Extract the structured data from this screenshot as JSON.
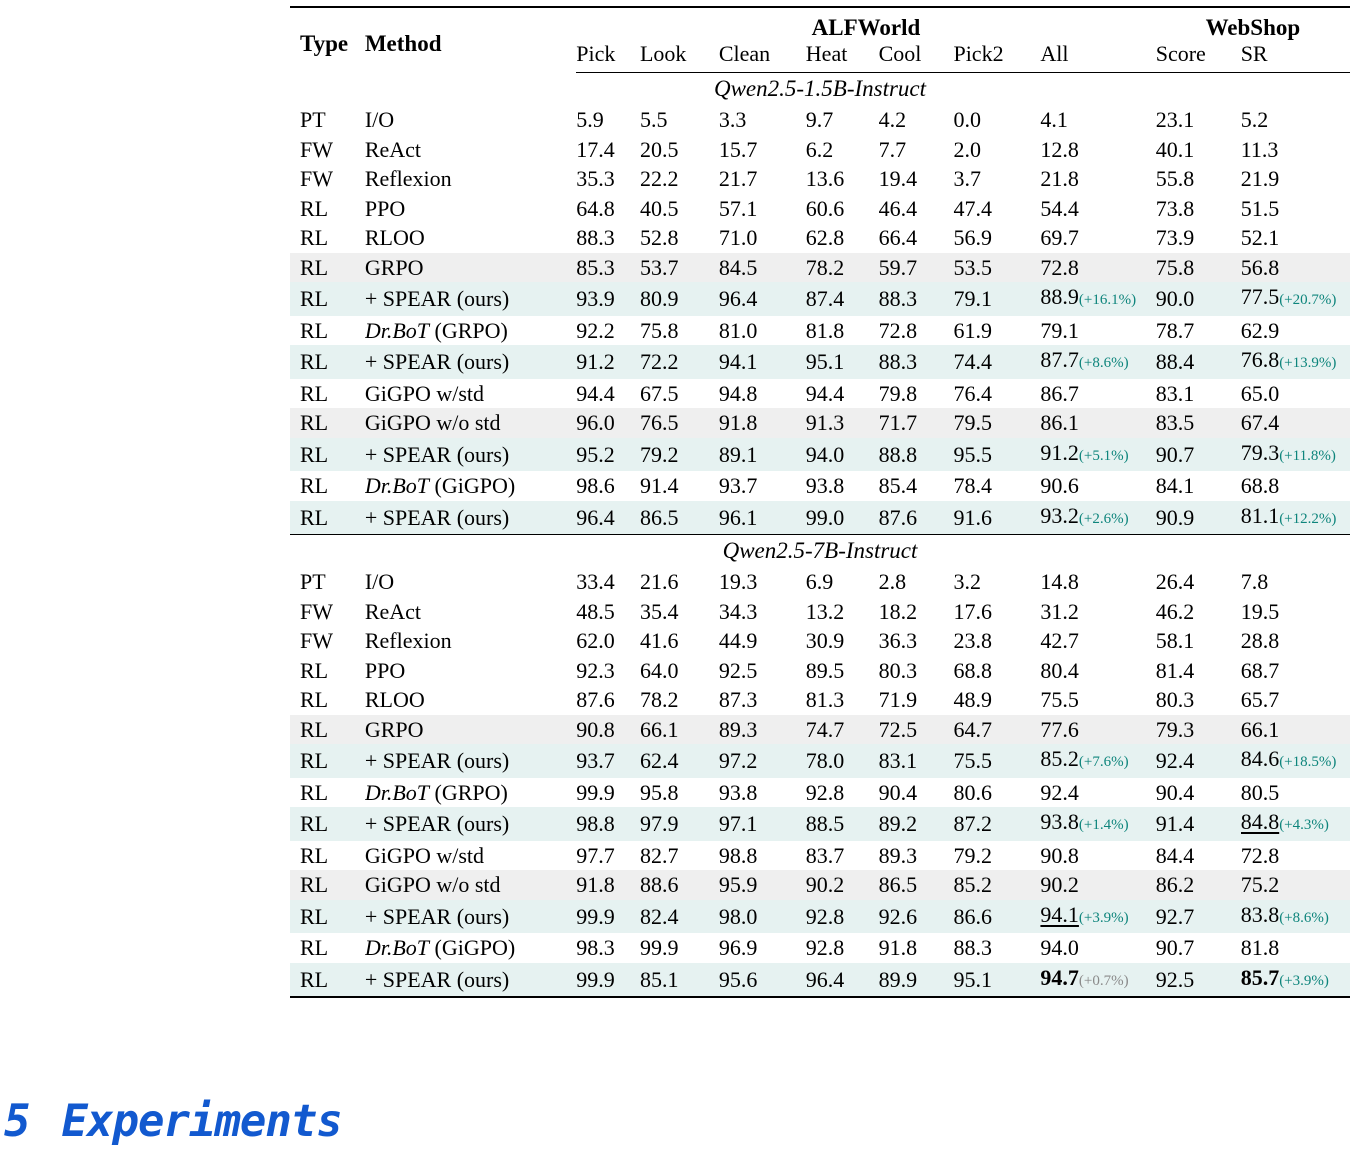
{
  "page": {
    "heading": {
      "number": "5",
      "title": "Experiments",
      "color": "#1259cf"
    }
  },
  "table": {
    "header": {
      "type": "Type",
      "method": "Method",
      "alfworld": "ALFWorld",
      "webshop": "WebShop",
      "columns": [
        "Pick",
        "Look",
        "Clean",
        "Heat",
        "Cool",
        "Pick2",
        "All",
        "Score",
        "SR"
      ]
    },
    "colors": {
      "row_teal": "#e6f2f1",
      "row_gray": "#efefef",
      "note_teal": "#0e857c",
      "note_muted": "#8a8a8a"
    },
    "sections": [
      {
        "title": "Qwen2.5-1.5B-Instruct",
        "rows": [
          {
            "type": "PT",
            "method": "I/O",
            "cells": [
              "5.9",
              "5.5",
              "3.3",
              "9.7",
              "4.2",
              "0.0"
            ],
            "all": {
              "v": "4.1"
            },
            "score": "23.1",
            "sr": {
              "v": "5.2"
            },
            "bg": null
          },
          {
            "type": "FW",
            "method": "ReAct",
            "cells": [
              "17.4",
              "20.5",
              "15.7",
              "6.2",
              "7.7",
              "2.0"
            ],
            "all": {
              "v": "12.8"
            },
            "score": "40.1",
            "sr": {
              "v": "11.3"
            },
            "bg": null
          },
          {
            "type": "FW",
            "method": "Reflexion",
            "cells": [
              "35.3",
              "22.2",
              "21.7",
              "13.6",
              "19.4",
              "3.7"
            ],
            "all": {
              "v": "21.8"
            },
            "score": "55.8",
            "sr": {
              "v": "21.9"
            },
            "bg": null
          },
          {
            "type": "RL",
            "method": "PPO",
            "cells": [
              "64.8",
              "40.5",
              "57.1",
              "60.6",
              "46.4",
              "47.4"
            ],
            "all": {
              "v": "54.4"
            },
            "score": "73.8",
            "sr": {
              "v": "51.5"
            },
            "bg": null
          },
          {
            "type": "RL",
            "method": "RLOO",
            "cells": [
              "88.3",
              "52.8",
              "71.0",
              "62.8",
              "66.4",
              "56.9"
            ],
            "all": {
              "v": "69.7"
            },
            "score": "73.9",
            "sr": {
              "v": "52.1"
            },
            "bg": null
          },
          {
            "type": "RL",
            "method": "GRPO",
            "cells": [
              "85.3",
              "53.7",
              "84.5",
              "78.2",
              "59.7",
              "53.5"
            ],
            "all": {
              "v": "72.8"
            },
            "score": "75.8",
            "sr": {
              "v": "56.8"
            },
            "bg": "gray"
          },
          {
            "type": "RL",
            "method": "+ SPEAR (ours)",
            "cells": [
              "93.9",
              "80.9",
              "96.4",
              "87.4",
              "88.3",
              "79.1"
            ],
            "all": {
              "v": "88.9",
              "note": "(+16.1%)"
            },
            "score": "90.0",
            "sr": {
              "v": "77.5",
              "note": "(+20.7%)"
            },
            "bg": "teal"
          },
          {
            "type": "RL",
            "method_em": "Dr.BoT",
            "method": " (GRPO)",
            "cells": [
              "92.2",
              "75.8",
              "81.0",
              "81.8",
              "72.8",
              "61.9"
            ],
            "all": {
              "v": "79.1"
            },
            "score": "78.7",
            "sr": {
              "v": "62.9"
            },
            "bg": null
          },
          {
            "type": "RL",
            "method": "+ SPEAR (ours)",
            "cells": [
              "91.2",
              "72.2",
              "94.1",
              "95.1",
              "88.3",
              "74.4"
            ],
            "all": {
              "v": "87.7",
              "note": "(+8.6%)"
            },
            "score": "88.4",
            "sr": {
              "v": "76.8",
              "note": "(+13.9%)"
            },
            "bg": "teal"
          },
          {
            "type": "RL",
            "method": "GiGPO w/std",
            "cells": [
              "94.4",
              "67.5",
              "94.8",
              "94.4",
              "79.8",
              "76.4"
            ],
            "all": {
              "v": "86.7"
            },
            "score": "83.1",
            "sr": {
              "v": "65.0"
            },
            "bg": null
          },
          {
            "type": "RL",
            "method": "GiGPO w/o std",
            "cells": [
              "96.0",
              "76.5",
              "91.8",
              "91.3",
              "71.7",
              "79.5"
            ],
            "all": {
              "v": "86.1"
            },
            "score": "83.5",
            "sr": {
              "v": "67.4"
            },
            "bg": "gray"
          },
          {
            "type": "RL",
            "method": "+ SPEAR (ours)",
            "cells": [
              "95.2",
              "79.2",
              "89.1",
              "94.0",
              "88.8",
              "95.5"
            ],
            "all": {
              "v": "91.2",
              "note": "(+5.1%)"
            },
            "score": "90.7",
            "sr": {
              "v": "79.3",
              "note": "(+11.8%)"
            },
            "bg": "teal"
          },
          {
            "type": "RL",
            "method_em": "Dr.BoT",
            "method": " (GiGPO)",
            "cells": [
              "98.6",
              "91.4",
              "93.7",
              "93.8",
              "85.4",
              "78.4"
            ],
            "all": {
              "v": "90.6"
            },
            "score": "84.1",
            "sr": {
              "v": "68.8"
            },
            "bg": null
          },
          {
            "type": "RL",
            "method": "+ SPEAR (ours)",
            "cells": [
              "96.4",
              "86.5",
              "96.1",
              "99.0",
              "87.6",
              "91.6"
            ],
            "all": {
              "v": "93.2",
              "note": "(+2.6%)"
            },
            "score": "90.9",
            "sr": {
              "v": "81.1",
              "note": "(+12.2%)"
            },
            "bg": "teal"
          }
        ]
      },
      {
        "title": "Qwen2.5-7B-Instruct",
        "rows": [
          {
            "type": "PT",
            "method": "I/O",
            "cells": [
              "33.4",
              "21.6",
              "19.3",
              "6.9",
              "2.8",
              "3.2"
            ],
            "all": {
              "v": "14.8"
            },
            "score": "26.4",
            "sr": {
              "v": "7.8"
            },
            "bg": null
          },
          {
            "type": "FW",
            "method": "ReAct",
            "cells": [
              "48.5",
              "35.4",
              "34.3",
              "13.2",
              "18.2",
              "17.6"
            ],
            "all": {
              "v": "31.2"
            },
            "score": "46.2",
            "sr": {
              "v": "19.5"
            },
            "bg": null
          },
          {
            "type": "FW",
            "method": "Reflexion",
            "cells": [
              "62.0",
              "41.6",
              "44.9",
              "30.9",
              "36.3",
              "23.8"
            ],
            "all": {
              "v": "42.7"
            },
            "score": "58.1",
            "sr": {
              "v": "28.8"
            },
            "bg": null
          },
          {
            "type": "RL",
            "method": "PPO",
            "cells": [
              "92.3",
              "64.0",
              "92.5",
              "89.5",
              "80.3",
              "68.8"
            ],
            "all": {
              "v": "80.4"
            },
            "score": "81.4",
            "sr": {
              "v": "68.7"
            },
            "bg": null
          },
          {
            "type": "RL",
            "method": "RLOO",
            "cells": [
              "87.6",
              "78.2",
              "87.3",
              "81.3",
              "71.9",
              "48.9"
            ],
            "all": {
              "v": "75.5"
            },
            "score": "80.3",
            "sr": {
              "v": "65.7"
            },
            "bg": null
          },
          {
            "type": "RL",
            "method": "GRPO",
            "cells": [
              "90.8",
              "66.1",
              "89.3",
              "74.7",
              "72.5",
              "64.7"
            ],
            "all": {
              "v": "77.6"
            },
            "score": "79.3",
            "sr": {
              "v": "66.1"
            },
            "bg": "gray"
          },
          {
            "type": "RL",
            "method": "+ SPEAR (ours)",
            "cells": [
              "93.7",
              "62.4",
              "97.2",
              "78.0",
              "83.1",
              "75.5"
            ],
            "all": {
              "v": "85.2",
              "note": "(+7.6%)"
            },
            "score": "92.4",
            "sr": {
              "v": "84.6",
              "note": "(+18.5%)"
            },
            "bg": "teal"
          },
          {
            "type": "RL",
            "method_em": "Dr.BoT",
            "method": " (GRPO)",
            "cells": [
              "99.9",
              "95.8",
              "93.8",
              "92.8",
              "90.4",
              "80.6"
            ],
            "all": {
              "v": "92.4"
            },
            "score": "90.4",
            "sr": {
              "v": "80.5"
            },
            "bg": null
          },
          {
            "type": "RL",
            "method": "+ SPEAR (ours)",
            "cells": [
              "98.8",
              "97.9",
              "97.1",
              "88.5",
              "89.2",
              "87.2"
            ],
            "all": {
              "v": "93.8",
              "note": "(+1.4%)"
            },
            "score": "91.4",
            "sr": {
              "v": "84.8",
              "note": "(+4.3%)",
              "style": "underline"
            },
            "bg": "teal"
          },
          {
            "type": "RL",
            "method": "GiGPO w/std",
            "cells": [
              "97.7",
              "82.7",
              "98.8",
              "83.7",
              "89.3",
              "79.2"
            ],
            "all": {
              "v": "90.8"
            },
            "score": "84.4",
            "sr": {
              "v": "72.8"
            },
            "bg": null
          },
          {
            "type": "RL",
            "method": "GiGPO w/o std",
            "cells": [
              "91.8",
              "88.6",
              "95.9",
              "90.2",
              "86.5",
              "85.2"
            ],
            "all": {
              "v": "90.2"
            },
            "score": "86.2",
            "sr": {
              "v": "75.2"
            },
            "bg": "gray"
          },
          {
            "type": "RL",
            "method": "+ SPEAR (ours)",
            "cells": [
              "99.9",
              "82.4",
              "98.0",
              "92.8",
              "92.6",
              "86.6"
            ],
            "all": {
              "v": "94.1",
              "note": "(+3.9%)",
              "style": "underline"
            },
            "score": "92.7",
            "sr": {
              "v": "83.8",
              "note": "(+8.6%)"
            },
            "bg": "teal"
          },
          {
            "type": "RL",
            "method_em": "Dr.BoT",
            "method": " (GiGPO)",
            "cells": [
              "98.3",
              "99.9",
              "96.9",
              "92.8",
              "91.8",
              "88.3"
            ],
            "all": {
              "v": "94.0"
            },
            "score": "90.7",
            "sr": {
              "v": "81.8"
            },
            "bg": null
          },
          {
            "type": "RL",
            "method": "+ SPEAR (ours)",
            "cells": [
              "99.9",
              "85.1",
              "95.6",
              "96.4",
              "89.9",
              "95.1"
            ],
            "all": {
              "v": "94.7",
              "note": "(+0.7%)",
              "style": "bold",
              "note_muted": true
            },
            "score": "92.5",
            "sr": {
              "v": "85.7",
              "note": "(+3.9%)",
              "style": "bold"
            },
            "bg": "teal"
          }
        ]
      }
    ]
  }
}
